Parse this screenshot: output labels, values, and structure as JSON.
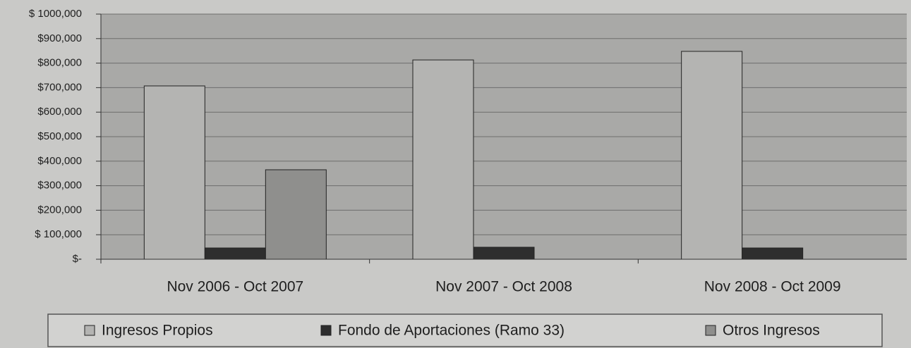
{
  "chart_data": {
    "type": "bar",
    "categories": [
      "Nov 2006 - Oct 2007",
      "Nov 2007 - Oct 2008",
      "Nov 2008 - Oct 2009"
    ],
    "series": [
      {
        "name": "Ingresos Propios",
        "color": "#b4b4b2",
        "values": [
          707000,
          813000,
          848000
        ]
      },
      {
        "name": "Fondo de Aportaciones (Ramo 33)",
        "color": "#2e2e2e",
        "values": [
          46000,
          49000,
          46000
        ]
      },
      {
        "name": "Otros Ingresos",
        "color": "#8f8f8d",
        "values": [
          365000,
          null,
          null
        ]
      }
    ],
    "ylim": [
      0,
      1000000
    ],
    "yticks": [
      {
        "value": 0,
        "label": "$-"
      },
      {
        "value": 100000,
        "label": "$ 100,000"
      },
      {
        "value": 200000,
        "label": "$200,000"
      },
      {
        "value": 300000,
        "label": "$300,000"
      },
      {
        "value": 400000,
        "label": "$400,000"
      },
      {
        "value": 500000,
        "label": "$500,000"
      },
      {
        "value": 600000,
        "label": "$600,000"
      },
      {
        "value": 700000,
        "label": "$700,000"
      },
      {
        "value": 800000,
        "label": "$800,000"
      },
      {
        "value": 900000,
        "label": "$900,000"
      },
      {
        "value": 1000000,
        "label": "$ 1000,000"
      }
    ],
    "grid": true,
    "legend": "bottom"
  }
}
